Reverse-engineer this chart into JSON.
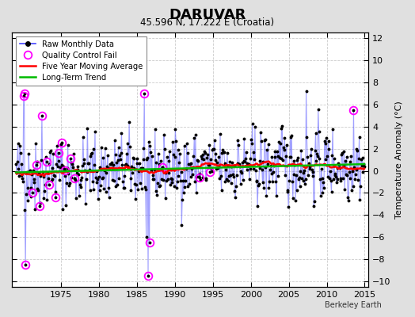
{
  "title": "DARUVAR",
  "subtitle": "45.596 N, 17.222 E (Croatia)",
  "ylabel": "Temperature Anomaly (°C)",
  "xlim": [
    1968.5,
    2015.5
  ],
  "ylim": [
    -10.5,
    12.5
  ],
  "yticks": [
    -10,
    -8,
    -6,
    -4,
    -2,
    0,
    2,
    4,
    6,
    8,
    10,
    12
  ],
  "xticks": [
    1975,
    1980,
    1985,
    1990,
    1995,
    2000,
    2005,
    2010,
    2015
  ],
  "fig_bg_color": "#e0e0e0",
  "plot_bg_color": "#ffffff",
  "grid_color": "#cccccc",
  "line_color": "#4444ff",
  "line_alpha": 0.5,
  "marker_color": "#000000",
  "qc_color": "#ff00ff",
  "ma_color": "#ff0000",
  "trend_color": "#00bb00",
  "watermark": "Berkeley Earth",
  "seed": 42,
  "start_year": 1969,
  "end_year": 2015
}
